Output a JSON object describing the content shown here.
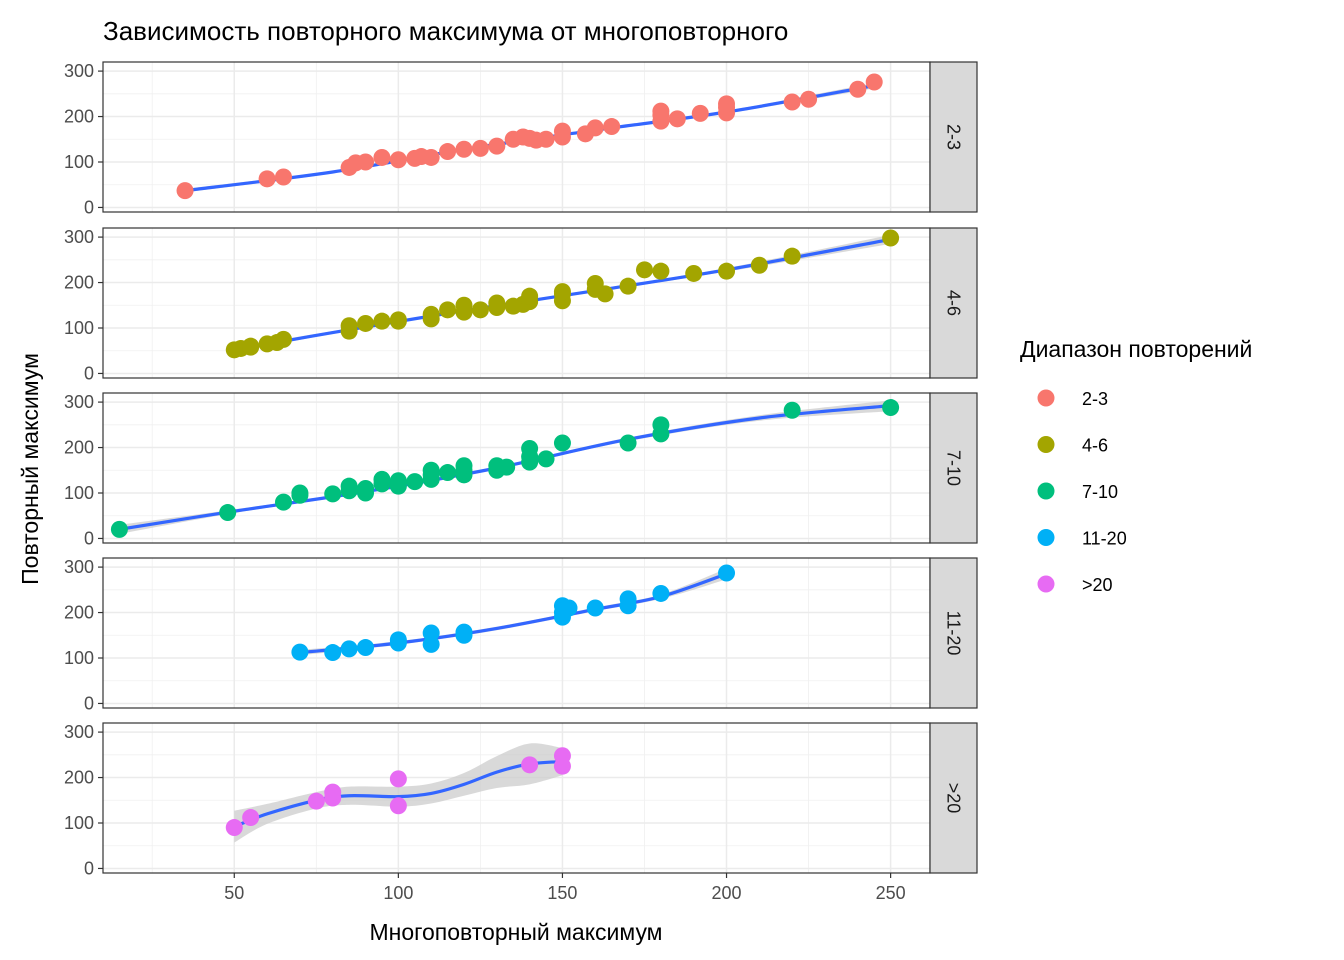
{
  "chart_data": {
    "type": "scatter",
    "title": "Зависимость повторного максимума от многоповторного",
    "xlabel": "Многоповторный максимум",
    "ylabel": "Повторный максимум",
    "xlim": [
      10,
      262
    ],
    "ylim": [
      -10,
      320
    ],
    "x_ticks": [
      50,
      100,
      150,
      200,
      250
    ],
    "y_ticks": [
      0,
      100,
      200,
      300
    ],
    "grid": true,
    "legend_title": "Диапазон повторений",
    "legend_position": "right",
    "smooth_color": "#3366ff",
    "band_color": "#cccccc",
    "strip_fill": "#d9d9d9",
    "series": [
      {
        "name": "2-3",
        "color": "#f8766d",
        "points": [
          [
            35,
            37
          ],
          [
            60,
            63
          ],
          [
            65,
            67
          ],
          [
            85,
            88
          ],
          [
            87,
            98
          ],
          [
            90,
            100
          ],
          [
            95,
            110
          ],
          [
            100,
            105
          ],
          [
            105,
            108
          ],
          [
            107,
            112
          ],
          [
            110,
            110
          ],
          [
            115,
            123
          ],
          [
            120,
            128
          ],
          [
            125,
            130
          ],
          [
            130,
            135
          ],
          [
            135,
            150
          ],
          [
            138,
            155
          ],
          [
            140,
            152
          ],
          [
            142,
            148
          ],
          [
            145,
            150
          ],
          [
            150,
            155
          ],
          [
            150,
            168
          ],
          [
            157,
            162
          ],
          [
            160,
            175
          ],
          [
            165,
            178
          ],
          [
            180,
            190
          ],
          [
            180,
            203
          ],
          [
            180,
            212
          ],
          [
            185,
            195
          ],
          [
            192,
            207
          ],
          [
            200,
            208
          ],
          [
            200,
            220
          ],
          [
            200,
            228
          ],
          [
            220,
            232
          ],
          [
            225,
            238
          ],
          [
            240,
            260
          ],
          [
            245,
            276
          ]
        ],
        "smooth": [
          [
            35,
            37
          ],
          [
            80,
            78
          ],
          [
            120,
            128
          ],
          [
            160,
            170
          ],
          [
            200,
            210
          ],
          [
            245,
            268
          ]
        ],
        "band": [
          4,
          3,
          3,
          3,
          3,
          6
        ]
      },
      {
        "name": "4-6",
        "color": "#a3a500",
        "points": [
          [
            50,
            52
          ],
          [
            52,
            55
          ],
          [
            55,
            60
          ],
          [
            55,
            58
          ],
          [
            60,
            65
          ],
          [
            63,
            68
          ],
          [
            65,
            75
          ],
          [
            85,
            93
          ],
          [
            85,
            105
          ],
          [
            90,
            110
          ],
          [
            95,
            115
          ],
          [
            100,
            115
          ],
          [
            100,
            118
          ],
          [
            110,
            120
          ],
          [
            110,
            130
          ],
          [
            115,
            140
          ],
          [
            120,
            135
          ],
          [
            120,
            150
          ],
          [
            125,
            140
          ],
          [
            130,
            145
          ],
          [
            130,
            155
          ],
          [
            135,
            148
          ],
          [
            138,
            152
          ],
          [
            140,
            158
          ],
          [
            140,
            170
          ],
          [
            150,
            160
          ],
          [
            150,
            175
          ],
          [
            150,
            180
          ],
          [
            160,
            185
          ],
          [
            160,
            198
          ],
          [
            163,
            175
          ],
          [
            170,
            192
          ],
          [
            175,
            228
          ],
          [
            180,
            225
          ],
          [
            190,
            220
          ],
          [
            200,
            225
          ],
          [
            210,
            238
          ],
          [
            220,
            258
          ],
          [
            250,
            298
          ]
        ],
        "smooth": [
          [
            50,
            52
          ],
          [
            80,
            90
          ],
          [
            120,
            138
          ],
          [
            160,
            182
          ],
          [
            200,
            228
          ],
          [
            250,
            295
          ]
        ],
        "band": [
          6,
          3,
          3,
          3,
          4,
          10
        ]
      },
      {
        "name": "7-10",
        "color": "#00bf7d",
        "points": [
          [
            15,
            20
          ],
          [
            48,
            57
          ],
          [
            65,
            80
          ],
          [
            70,
            95
          ],
          [
            70,
            100
          ],
          [
            80,
            98
          ],
          [
            85,
            105
          ],
          [
            85,
            115
          ],
          [
            90,
            100
          ],
          [
            90,
            110
          ],
          [
            95,
            120
          ],
          [
            95,
            130
          ],
          [
            100,
            115
          ],
          [
            100,
            123
          ],
          [
            100,
            127
          ],
          [
            105,
            125
          ],
          [
            110,
            130
          ],
          [
            110,
            140
          ],
          [
            110,
            150
          ],
          [
            115,
            145
          ],
          [
            120,
            140
          ],
          [
            120,
            150
          ],
          [
            120,
            160
          ],
          [
            130,
            150
          ],
          [
            130,
            160
          ],
          [
            133,
            157
          ],
          [
            140,
            168
          ],
          [
            140,
            180
          ],
          [
            140,
            198
          ],
          [
            145,
            175
          ],
          [
            150,
            210
          ],
          [
            170,
            210
          ],
          [
            180,
            230
          ],
          [
            180,
            250
          ],
          [
            220,
            282
          ],
          [
            250,
            288
          ]
        ],
        "smooth": [
          [
            15,
            20
          ],
          [
            50,
            60
          ],
          [
            90,
            103
          ],
          [
            130,
            155
          ],
          [
            170,
            218
          ],
          [
            210,
            265
          ],
          [
            250,
            292
          ]
        ],
        "band": [
          10,
          4,
          3,
          3,
          4,
          6,
          12
        ]
      },
      {
        "name": "11-20",
        "color": "#00b0f6",
        "points": [
          [
            70,
            113
          ],
          [
            80,
            112
          ],
          [
            85,
            120
          ],
          [
            90,
            123
          ],
          [
            100,
            133
          ],
          [
            100,
            140
          ],
          [
            110,
            130
          ],
          [
            110,
            155
          ],
          [
            120,
            150
          ],
          [
            120,
            157
          ],
          [
            150,
            190
          ],
          [
            150,
            200
          ],
          [
            150,
            215
          ],
          [
            152,
            210
          ],
          [
            160,
            210
          ],
          [
            170,
            215
          ],
          [
            170,
            230
          ],
          [
            180,
            242
          ],
          [
            200,
            287
          ]
        ],
        "smooth": [
          [
            70,
            112
          ],
          [
            100,
            133
          ],
          [
            130,
            165
          ],
          [
            160,
            207
          ],
          [
            180,
            235
          ],
          [
            200,
            285
          ]
        ],
        "band": [
          6,
          4,
          4,
          4,
          5,
          12
        ]
      },
      {
        "name": ">20",
        "color": "#e76bf3",
        "points": [
          [
            50,
            90
          ],
          [
            55,
            112
          ],
          [
            75,
            148
          ],
          [
            80,
            155
          ],
          [
            80,
            168
          ],
          [
            100,
            138
          ],
          [
            100,
            197
          ],
          [
            140,
            228
          ],
          [
            150,
            225
          ],
          [
            150,
            248
          ]
        ],
        "smooth": [
          [
            50,
            92
          ],
          [
            60,
            120
          ],
          [
            75,
            150
          ],
          [
            85,
            160
          ],
          [
            100,
            158
          ],
          [
            110,
            165
          ],
          [
            120,
            185
          ],
          [
            130,
            212
          ],
          [
            140,
            230
          ],
          [
            150,
            235
          ]
        ],
        "band": [
          35,
          22,
          18,
          20,
          22,
          22,
          25,
          35,
          45,
          30
        ]
      }
    ]
  }
}
